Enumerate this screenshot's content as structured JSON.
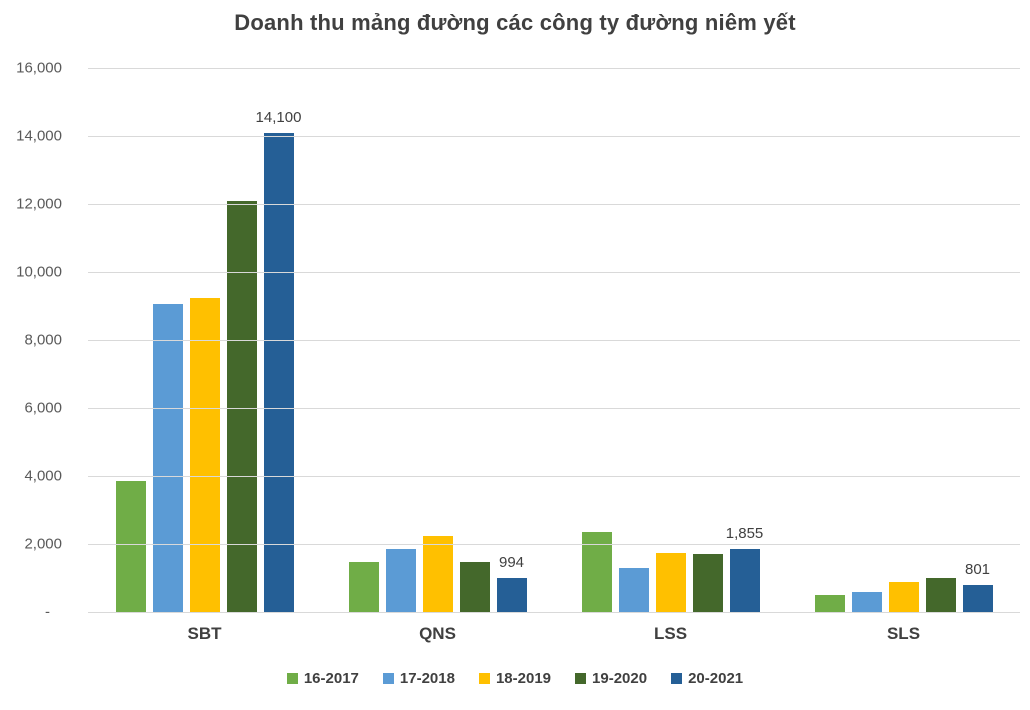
{
  "title": "Doanh thu mảng đường các công ty đường niêm yết",
  "colors": {
    "gridline": "#d9d9d9",
    "axis_text": "#595959",
    "title_text": "#404040",
    "label_text": "#404040"
  },
  "chart_data": {
    "type": "bar",
    "title": "Doanh thu mảng đường các công ty đường niêm yết",
    "xlabel": "",
    "ylabel": "",
    "grid": true,
    "legend_position": "bottom",
    "categories": [
      "SBT",
      "QNS",
      "LSS",
      "SLS"
    ],
    "series": [
      {
        "name": "16-2017",
        "color": "#70AD47",
        "values": [
          3850,
          1460,
          2350,
          500
        ]
      },
      {
        "name": "17-2018",
        "color": "#5B9BD5",
        "values": [
          9050,
          1850,
          1300,
          590
        ]
      },
      {
        "name": "18-2019",
        "color": "#FFC000",
        "values": [
          9230,
          2250,
          1750,
          870
        ]
      },
      {
        "name": "19-2020",
        "color": "#44682B",
        "values": [
          12080,
          1460,
          1700,
          1000
        ]
      },
      {
        "name": "20-2021",
        "color": "#255F96",
        "values": [
          14100,
          994,
          1855,
          801
        ],
        "data_labels": [
          "14,100",
          "994",
          "1,855",
          "801"
        ]
      }
    ],
    "y_axis": {
      "min": 0,
      "max": 16000,
      "step": 2000,
      "tick_labels": [
        "16,000",
        "14,000",
        "12,000",
        "10,000",
        "8,000",
        "6,000",
        "4,000",
        "2,000",
        "-"
      ],
      "zero_label": "-"
    }
  }
}
